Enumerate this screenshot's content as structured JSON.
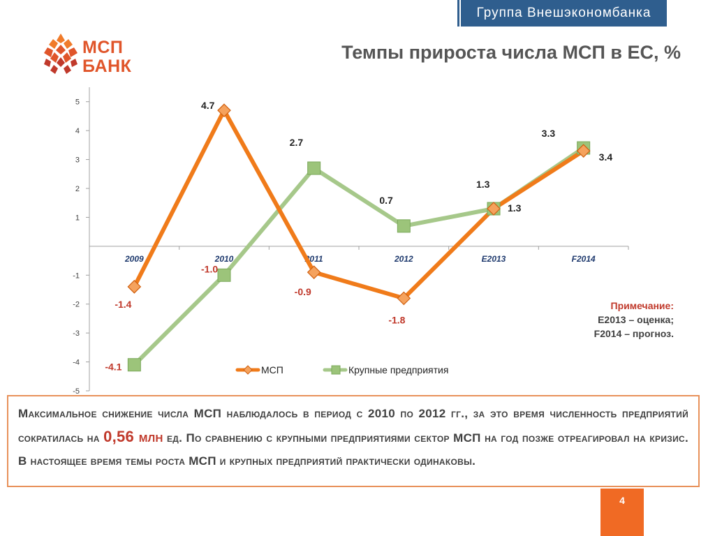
{
  "header": {
    "group_name": "Группа Внешэкономбанка",
    "page_title": "Темпы прироста числа МСП в ЕС, %"
  },
  "logo": {
    "line1": "МСП",
    "line2": "БАНК",
    "colors": [
      "#f07b2a",
      "#e0552a",
      "#c0392b"
    ]
  },
  "chart_data": {
    "type": "line",
    "categories": [
      "2009",
      "2010",
      "2011",
      "2012",
      "E2013",
      "F2014"
    ],
    "yticks": [
      5,
      4,
      3,
      2,
      1,
      -1,
      -2,
      -3,
      -4,
      -5
    ],
    "ylim": [
      -5,
      5.5
    ],
    "grid": false,
    "legend_position": "bottom",
    "series": [
      {
        "name": "МСП",
        "color": "#f07b1a",
        "marker": "diamond",
        "values": [
          -1.4,
          4.7,
          -0.9,
          -1.8,
          1.3,
          3.3
        ],
        "labels": [
          "-1.4",
          "4.7",
          "-0.9",
          "-1.8",
          "1.3",
          "3.3"
        ]
      },
      {
        "name": "Крупные предприятия",
        "color": "#a6c88a",
        "marker": "square",
        "values": [
          -4.1,
          -1.0,
          2.7,
          0.7,
          1.3,
          3.4
        ],
        "labels": [
          "-4.1",
          "-1.0",
          "2.7",
          "0.7",
          "1.3",
          "3.4"
        ]
      }
    ]
  },
  "note": {
    "title": "Примечание:",
    "line1": "E2013 –  оценка;",
    "line2": "F2014 – прогноз."
  },
  "summary": {
    "part1": "Максимальное снижение числа МСП наблюдалось в период с 2010 по 2012 гг., за это время численность предприятий сократилась на",
    "highlight": "0,56 млн",
    "part2": "ед. По сравнению с крупными предприятиями сектор МСП на год позже отреагировал на кризис. В настоящее время темы роста МСП и крупных предприятий практически одинаковы."
  },
  "page_number": "4"
}
